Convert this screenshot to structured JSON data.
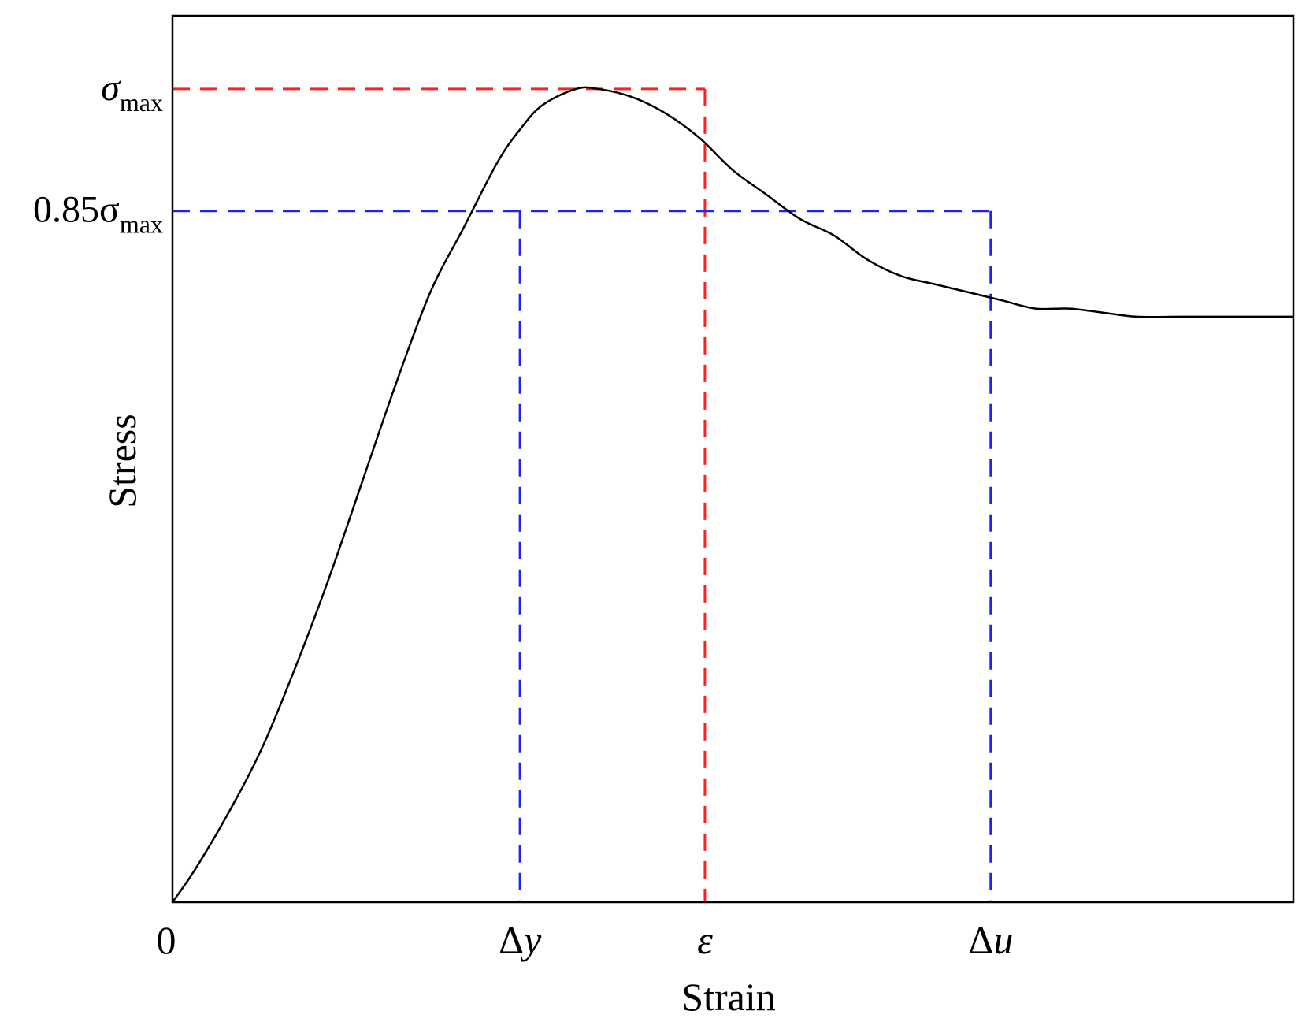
{
  "chart_data": {
    "type": "line",
    "xlabel": "Strain",
    "ylabel": "Stress",
    "xlim": [
      0,
      1
    ],
    "ylim": [
      0,
      1.09
    ],
    "grid": false,
    "legend": "none",
    "series": [
      {
        "x": [
          0,
          0.02,
          0.05,
          0.08,
          0.11,
          0.14,
          0.17,
          0.2,
          0.23,
          0.26,
          0.29,
          0.31,
          0.33,
          0.36,
          0.38,
          0.41,
          0.44,
          0.47,
          0.5,
          0.53,
          0.56,
          0.59,
          0.62,
          0.65,
          0.68,
          0.71,
          0.74,
          0.77,
          0.8,
          0.83,
          0.86,
          0.9,
          0.94,
          0.97,
          1.0
        ],
        "values": [
          0,
          0.04,
          0.11,
          0.19,
          0.29,
          0.4,
          0.52,
          0.64,
          0.75,
          0.83,
          0.91,
          0.95,
          0.98,
          1.0,
          1.0,
          0.99,
          0.97,
          0.94,
          0.9,
          0.87,
          0.84,
          0.82,
          0.79,
          0.77,
          0.76,
          0.75,
          0.74,
          0.73,
          0.73,
          0.725,
          0.72,
          0.72,
          0.72,
          0.72,
          0.72
        ],
        "color": "#000000"
      }
    ],
    "y_ticks": [
      {
        "label": "σ",
        "sub": "max",
        "value": 1.0,
        "italic": true
      },
      {
        "label": "0.85σ",
        "sub": "max",
        "value": 0.85,
        "italic": false
      }
    ],
    "x_ticks": [
      {
        "label": "0",
        "value": 0,
        "italic": false
      },
      {
        "label": "Δ",
        "var": "y",
        "value": 0.31
      },
      {
        "label": "ε",
        "value": 0.475,
        "italic": true
      },
      {
        "label": "Δ",
        "var": "u",
        "value": 0.73
      }
    ],
    "reference_lines": [
      {
        "level": 1.0,
        "x_at": 0.475,
        "color": "#ff2020"
      },
      {
        "level": 0.85,
        "x_left": 0.31,
        "x_right": 0.73,
        "color": "#2020ff"
      }
    ]
  }
}
